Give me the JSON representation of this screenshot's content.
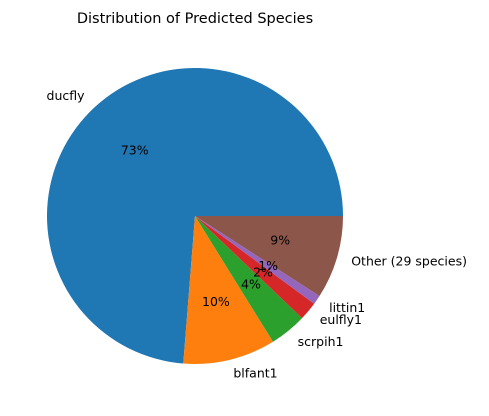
{
  "chart_data": {
    "type": "pie",
    "title": "Distribution of Predicted Species",
    "labels": [
      "ducfly",
      "blfant1",
      "scrpih1",
      "eulfly1",
      "littin1",
      "Other (29 species)"
    ],
    "values": [
      73,
      10,
      4,
      2,
      1,
      9
    ],
    "pct_labels": [
      "73%",
      "10%",
      "4%",
      "2%",
      "1%",
      "9%"
    ],
    "colors": [
      "#1f77b4",
      "#ff7f0e",
      "#2ca02c",
      "#d62728",
      "#9467bd",
      "#8c564b"
    ],
    "start_angle_deg": 0,
    "direction": "counterclockwise"
  }
}
